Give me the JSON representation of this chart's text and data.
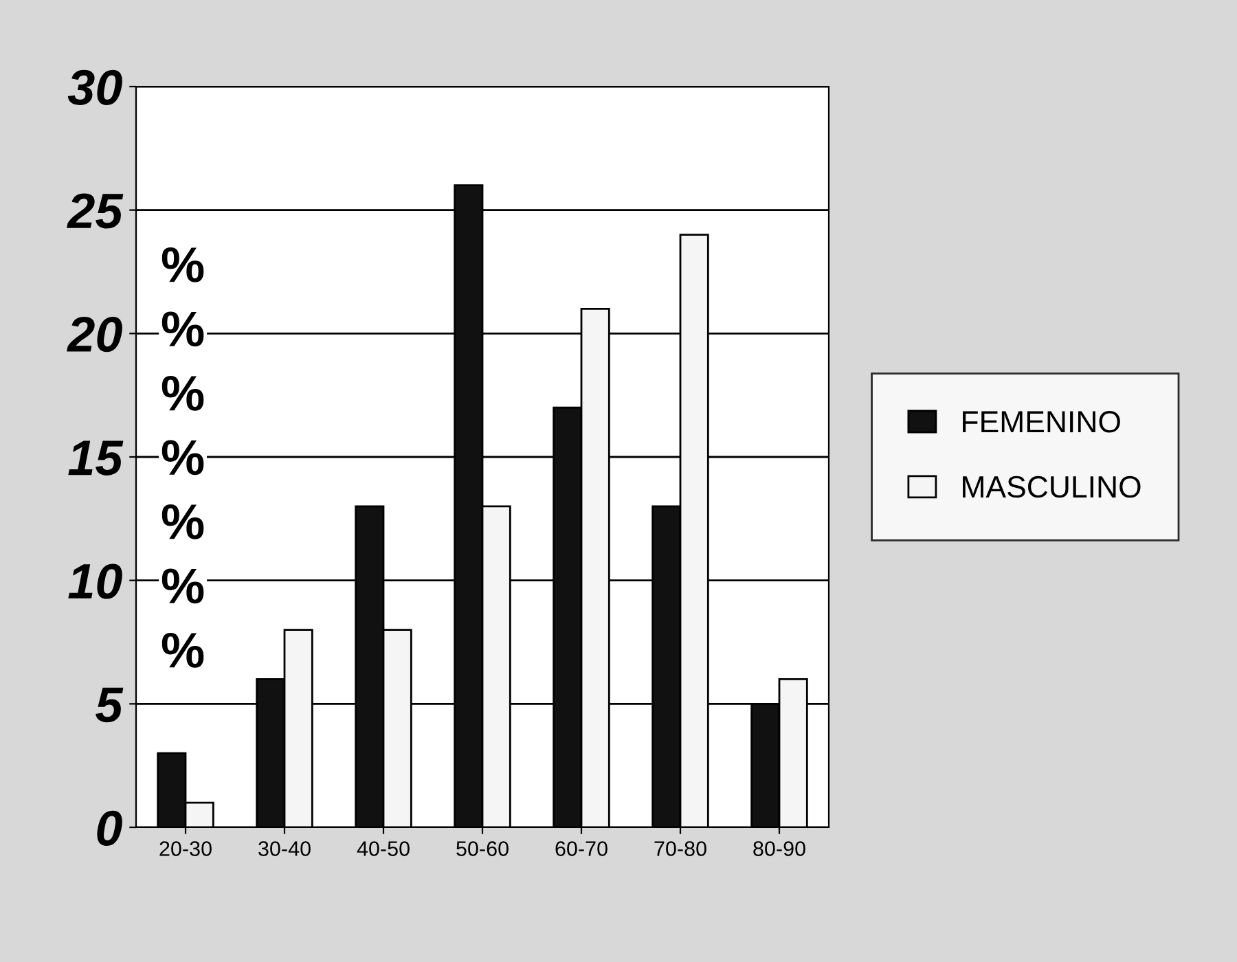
{
  "chart_data": {
    "type": "bar",
    "ylabel": "%%%%%%%",
    "categories": [
      "20-30",
      "30-40",
      "40-50",
      "50-60",
      "60-70",
      "70-80",
      "80-90"
    ],
    "series": [
      {
        "name": "FEMENINO",
        "color": "#111111",
        "values": [
          3,
          6,
          13,
          26,
          17,
          13,
          5
        ]
      },
      {
        "name": "MASCULINO",
        "color": "#f5f5f5",
        "values": [
          1,
          8,
          8,
          13,
          21,
          24,
          6
        ]
      }
    ],
    "ylim": [
      0,
      30
    ],
    "yticks": [
      0,
      5,
      10,
      15,
      20,
      25,
      30
    ],
    "grid": "y",
    "legend": "right"
  }
}
